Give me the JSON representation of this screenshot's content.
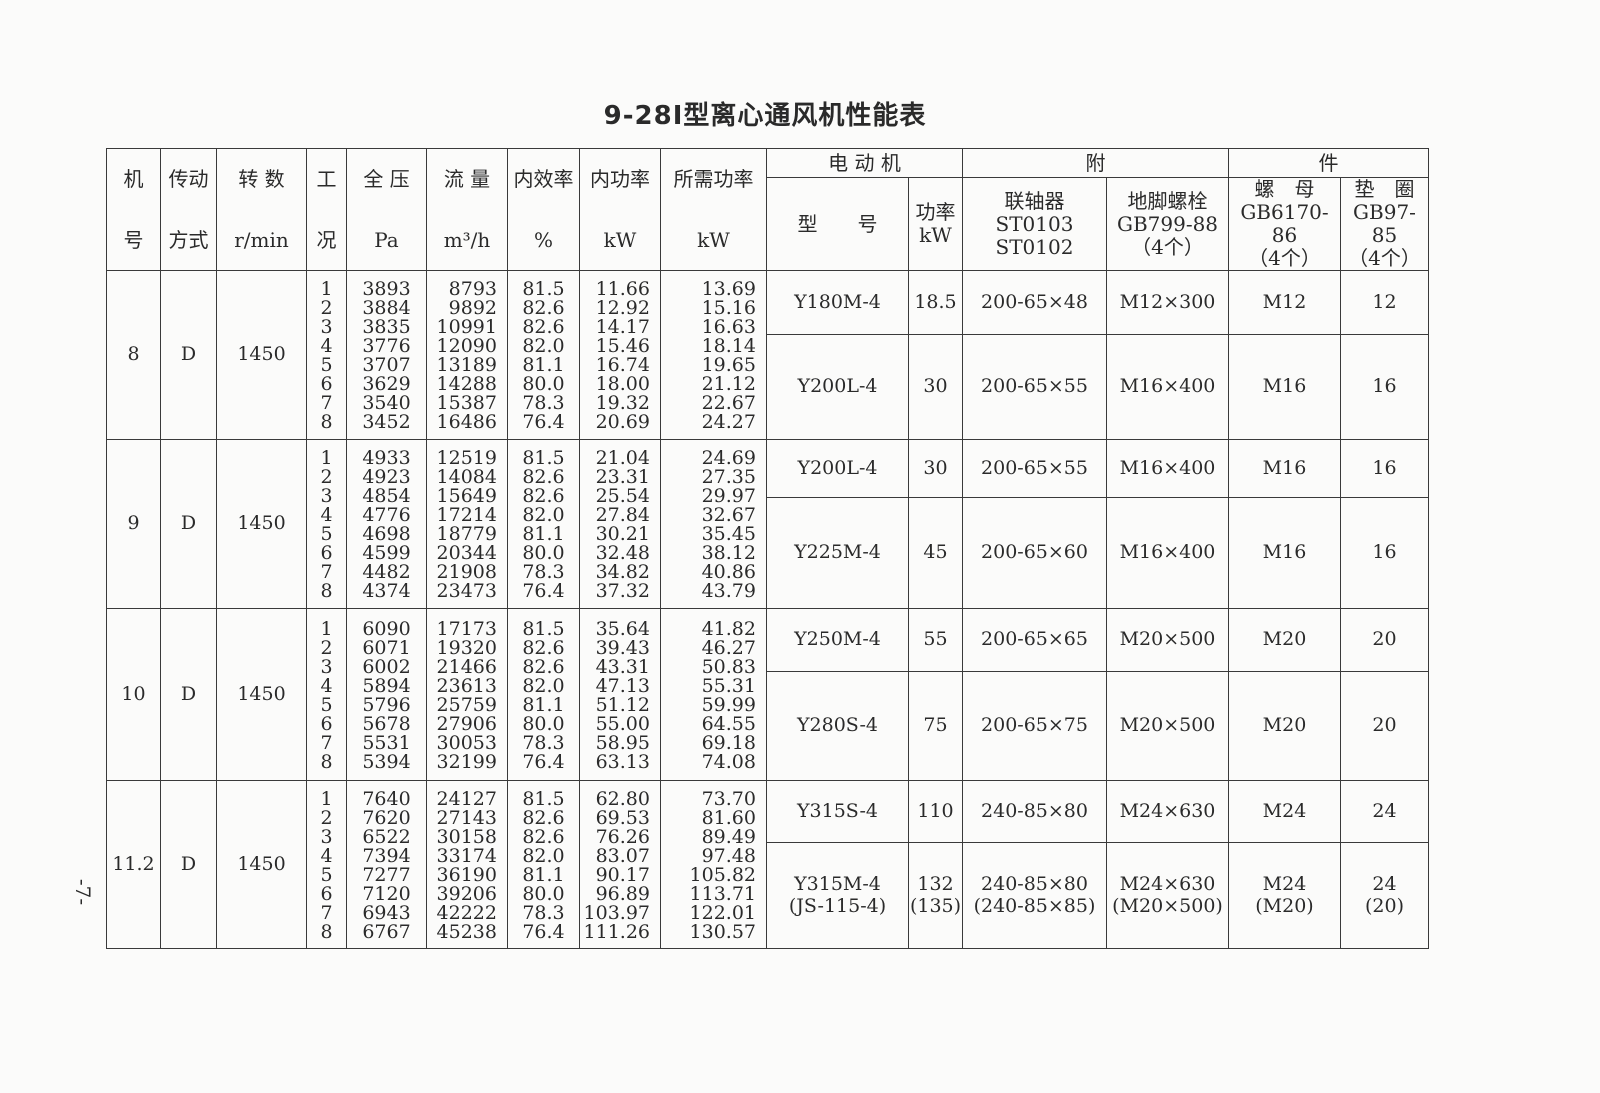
{
  "title": "9-28Ⅰ型离心通风机性能表",
  "page_number": "-7-",
  "headers": {
    "fan_no": [
      "机",
      "号"
    ],
    "drive": [
      "传动",
      "方式"
    ],
    "speed": [
      "转 数",
      "r/min"
    ],
    "condition": [
      "工",
      "况"
    ],
    "pressure": [
      "全 压",
      "Pa"
    ],
    "flow": [
      "流 量",
      "m³/h"
    ],
    "efficiency": [
      "内效率",
      "%"
    ],
    "internal_power": [
      "内功率",
      "kW"
    ],
    "required_power": [
      "所需功率",
      "kW"
    ],
    "motor_group": "电 动 机",
    "motor_model": "型　　号",
    "motor_power": [
      "功率",
      "kW"
    ],
    "accessory_left": "附",
    "accessory_right": "件",
    "coupling": [
      "联轴器",
      "ST0103",
      "ST0102"
    ],
    "anchor_bolt": [
      "地脚螺栓",
      "GB799-88",
      "（4个）"
    ],
    "nut": [
      "螺　母",
      "GB6170-86",
      "（4个）"
    ],
    "washer": [
      "垫　圈",
      "GB97-85",
      "（4个）"
    ]
  },
  "fans": [
    {
      "fan_no": "8",
      "drive": "D",
      "speed": "1450",
      "conditions": [
        "1",
        "2",
        "3",
        "4",
        "5",
        "6",
        "7",
        "8"
      ],
      "pressure": [
        "3893",
        "3884",
        "3835",
        "3776",
        "3707",
        "3629",
        "3540",
        "3452"
      ],
      "flow": [
        "8793",
        "9892",
        "10991",
        "12090",
        "13189",
        "14288",
        "15387",
        "16486"
      ],
      "efficiency": [
        "81.5",
        "82.6",
        "82.6",
        "82.0",
        "81.1",
        "80.0",
        "78.3",
        "76.4"
      ],
      "internal_power": [
        "11.66",
        "12.92",
        "14.17",
        "15.46",
        "16.74",
        "18.00",
        "19.32",
        "20.69"
      ],
      "required_power": [
        "13.69",
        "15.16",
        "16.63",
        "18.14",
        "19.65",
        "21.12",
        "22.67",
        "24.27"
      ],
      "motors": [
        {
          "model": [
            "Y180M-4"
          ],
          "power": [
            "18.5"
          ],
          "coupling": [
            "200-65×48"
          ],
          "bolt": [
            "M12×300"
          ],
          "nut": [
            "M12"
          ],
          "washer": [
            "12"
          ]
        },
        {
          "model": [
            "Y200L-4"
          ],
          "power": [
            "30"
          ],
          "coupling": [
            "200-65×55"
          ],
          "bolt": [
            "M16×400"
          ],
          "nut": [
            "M16"
          ],
          "washer": [
            "16"
          ]
        }
      ]
    },
    {
      "fan_no": "9",
      "drive": "D",
      "speed": "1450",
      "conditions": [
        "1",
        "2",
        "3",
        "4",
        "5",
        "6",
        "7",
        "8"
      ],
      "pressure": [
        "4933",
        "4923",
        "4854",
        "4776",
        "4698",
        "4599",
        "4482",
        "4374"
      ],
      "flow": [
        "12519",
        "14084",
        "15649",
        "17214",
        "18779",
        "20344",
        "21908",
        "23473"
      ],
      "efficiency": [
        "81.5",
        "82.6",
        "82.6",
        "82.0",
        "81.1",
        "80.0",
        "78.3",
        "76.4"
      ],
      "internal_power": [
        "21.04",
        "23.31",
        "25.54",
        "27.84",
        "30.21",
        "32.48",
        "34.82",
        "37.32"
      ],
      "required_power": [
        "24.69",
        "27.35",
        "29.97",
        "32.67",
        "35.45",
        "38.12",
        "40.86",
        "43.79"
      ],
      "motors": [
        {
          "model": [
            "Y200L-4"
          ],
          "power": [
            "30"
          ],
          "coupling": [
            "200-65×55"
          ],
          "bolt": [
            "M16×400"
          ],
          "nut": [
            "M16"
          ],
          "washer": [
            "16"
          ]
        },
        {
          "model": [
            "Y225M-4"
          ],
          "power": [
            "45"
          ],
          "coupling": [
            "200-65×60"
          ],
          "bolt": [
            "M16×400"
          ],
          "nut": [
            "M16"
          ],
          "washer": [
            "16"
          ]
        }
      ]
    },
    {
      "fan_no": "10",
      "drive": "D",
      "speed": "1450",
      "conditions": [
        "1",
        "2",
        "3",
        "4",
        "5",
        "6",
        "7",
        "8"
      ],
      "pressure": [
        "6090",
        "6071",
        "6002",
        "5894",
        "5796",
        "5678",
        "5531",
        "5394"
      ],
      "flow": [
        "17173",
        "19320",
        "21466",
        "23613",
        "25759",
        "27906",
        "30053",
        "32199"
      ],
      "efficiency": [
        "81.5",
        "82.6",
        "82.6",
        "82.0",
        "81.1",
        "80.0",
        "78.3",
        "76.4"
      ],
      "internal_power": [
        "35.64",
        "39.43",
        "43.31",
        "47.13",
        "51.12",
        "55.00",
        "58.95",
        "63.13"
      ],
      "required_power": [
        "41.82",
        "46.27",
        "50.83",
        "55.31",
        "59.99",
        "64.55",
        "69.18",
        "74.08"
      ],
      "motors": [
        {
          "model": [
            "Y250M-4"
          ],
          "power": [
            "55"
          ],
          "coupling": [
            "200-65×65"
          ],
          "bolt": [
            "M20×500"
          ],
          "nut": [
            "M20"
          ],
          "washer": [
            "20"
          ]
        },
        {
          "model": [
            "Y280S-4"
          ],
          "power": [
            "75"
          ],
          "coupling": [
            "200-65×75"
          ],
          "bolt": [
            "M20×500"
          ],
          "nut": [
            "M20"
          ],
          "washer": [
            "20"
          ]
        }
      ]
    },
    {
      "fan_no": "11.2",
      "drive": "D",
      "speed": "1450",
      "conditions": [
        "1",
        "2",
        "3",
        "4",
        "5",
        "6",
        "7",
        "8"
      ],
      "pressure": [
        "7640",
        "7620",
        "6522",
        "7394",
        "7277",
        "7120",
        "6943",
        "6767"
      ],
      "flow": [
        "24127",
        "27143",
        "30158",
        "33174",
        "36190",
        "39206",
        "42222",
        "45238"
      ],
      "efficiency": [
        "81.5",
        "82.6",
        "82.6",
        "82.0",
        "81.1",
        "80.0",
        "78.3",
        "76.4"
      ],
      "internal_power": [
        "62.80",
        "69.53",
        "76.26",
        "83.07",
        "90.17",
        "96.89",
        "103.97",
        "111.26"
      ],
      "required_power": [
        "73.70",
        "81.60",
        "89.49",
        "97.48",
        "105.82",
        "113.71",
        "122.01",
        "130.57"
      ],
      "motors": [
        {
          "model": [
            "Y315S-4"
          ],
          "power": [
            "110"
          ],
          "coupling": [
            "240-85×80"
          ],
          "bolt": [
            "M24×630"
          ],
          "nut": [
            "M24"
          ],
          "washer": [
            "24"
          ]
        },
        {
          "model": [
            "Y315M-4",
            "(JS-115-4)"
          ],
          "power": [
            "132",
            "(135)"
          ],
          "coupling": [
            "240-85×80",
            "(240-85×85)"
          ],
          "bolt": [
            "M24×630",
            "(M20×500)"
          ],
          "nut": [
            "M24",
            "(M20)"
          ],
          "washer": [
            "24",
            "(20)"
          ]
        }
      ]
    }
  ]
}
